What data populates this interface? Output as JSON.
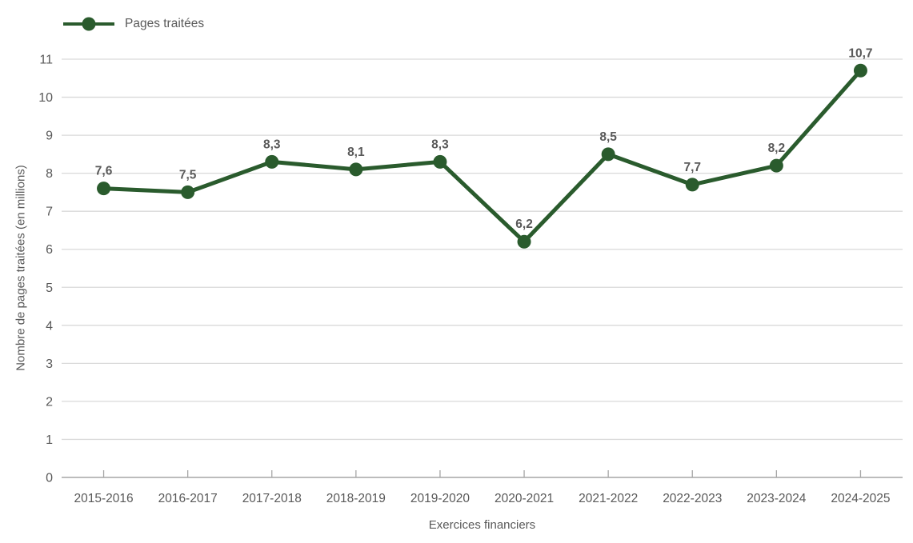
{
  "chart_data": {
    "type": "line",
    "legend": {
      "label": "Pages traitées",
      "position": "top-left"
    },
    "xlabel": "Exercices financiers",
    "ylabel": "Nombre de pages traitées (en millions)",
    "categories": [
      "2015-2016",
      "2016-2017",
      "2017-2018",
      "2018-2019",
      "2019-2020",
      "2020-2021",
      "2021-2022",
      "2022-2023",
      "2023-2024",
      "2024-2025"
    ],
    "series": [
      {
        "name": "Pages traitées",
        "values": [
          7.6,
          7.5,
          8.3,
          8.1,
          8.3,
          6.2,
          8.5,
          7.7,
          8.2,
          10.7
        ],
        "data_labels": [
          "7,6",
          "7,5",
          "8,3",
          "8,1",
          "8,3",
          "6,2",
          "8,5",
          "7,7",
          "8,2",
          "10,7"
        ]
      }
    ],
    "ylim": [
      0,
      11
    ],
    "ytick_step": 1,
    "ytick_labels": [
      "0",
      "1",
      "2",
      "3",
      "4",
      "5",
      "6",
      "7",
      "8",
      "9",
      "10",
      "11"
    ],
    "grid": "horizontal",
    "colors": {
      "line": "#2a5b2d",
      "marker": "#2a5b2d",
      "data_label": "#595959",
      "tick_label": "#595959",
      "axis_title": "#595959",
      "gridline": "#d9d9d9",
      "axis_line": "#a6a6a6"
    }
  }
}
